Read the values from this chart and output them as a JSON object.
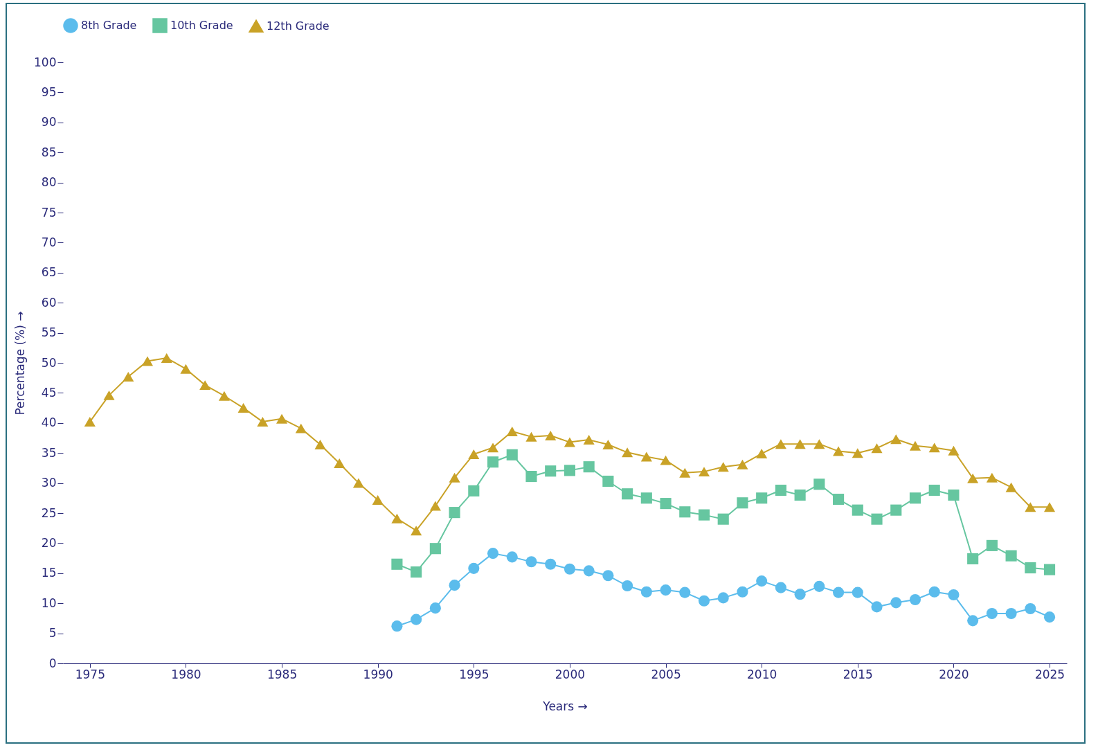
{
  "chart_data": {
    "type": "line",
    "xlabel": "Years →",
    "ylabel": "Percentage (%) →",
    "x": [
      1975,
      1976,
      1977,
      1978,
      1979,
      1980,
      1981,
      1982,
      1983,
      1984,
      1985,
      1986,
      1987,
      1988,
      1989,
      1990,
      1991,
      1992,
      1993,
      1994,
      1995,
      1996,
      1997,
      1998,
      1999,
      2000,
      2001,
      2002,
      2003,
      2004,
      2005,
      2006,
      2007,
      2008,
      2009,
      2010,
      2011,
      2012,
      2013,
      2014,
      2015,
      2016,
      2017,
      2018,
      2019,
      2020,
      2021,
      2022,
      2023,
      2024,
      2025
    ],
    "series": [
      {
        "name": "8th Grade",
        "color": "#5bbcec",
        "marker": "circle",
        "x": [
          1991,
          1992,
          1993,
          1994,
          1995,
          1996,
          1997,
          1998,
          1999,
          2000,
          2001,
          2002,
          2003,
          2004,
          2005,
          2006,
          2007,
          2008,
          2009,
          2010,
          2011,
          2012,
          2013,
          2014,
          2015,
          2016,
          2017,
          2018,
          2019,
          2020,
          2021,
          2022,
          2023,
          2024,
          2025
        ],
        "values": [
          6.2,
          7.3,
          9.2,
          13.0,
          15.8,
          18.3,
          17.7,
          16.9,
          16.5,
          15.7,
          15.4,
          14.6,
          12.9,
          11.9,
          12.2,
          11.8,
          10.4,
          10.9,
          11.9,
          13.7,
          12.6,
          11.5,
          12.8,
          11.8,
          11.8,
          9.4,
          10.1,
          10.6,
          11.9,
          11.4,
          7.1,
          8.3,
          8.3,
          9.1,
          7.7
        ]
      },
      {
        "name": "10th Grade",
        "color": "#66c6a0",
        "marker": "square",
        "x": [
          1991,
          1992,
          1993,
          1994,
          1995,
          1996,
          1997,
          1998,
          1999,
          2000,
          2001,
          2002,
          2003,
          2004,
          2005,
          2006,
          2007,
          2008,
          2009,
          2010,
          2011,
          2012,
          2013,
          2014,
          2015,
          2016,
          2017,
          2018,
          2019,
          2020,
          2021,
          2022,
          2023,
          2024,
          2025
        ],
        "values": [
          16.5,
          15.2,
          19.1,
          25.1,
          28.7,
          33.5,
          34.7,
          31.1,
          32.0,
          32.1,
          32.7,
          30.3,
          28.2,
          27.5,
          26.6,
          25.2,
          24.7,
          24.0,
          26.7,
          27.5,
          28.8,
          28.0,
          29.8,
          27.3,
          25.5,
          24.0,
          25.5,
          27.5,
          28.8,
          28.0,
          17.4,
          19.6,
          17.9,
          15.9,
          15.6
        ]
      },
      {
        "name": "12th Grade",
        "color": "#c9a227",
        "marker": "triangle",
        "values": [
          40.2,
          44.6,
          47.7,
          50.3,
          50.8,
          49.0,
          46.3,
          44.5,
          42.5,
          40.2,
          40.7,
          39.1,
          36.4,
          33.3,
          30.0,
          27.2,
          24.1,
          22.1,
          26.2,
          30.9,
          34.8,
          35.9,
          38.6,
          37.7,
          37.9,
          36.8,
          37.2,
          36.4,
          35.1,
          34.4,
          33.8,
          31.7,
          31.9,
          32.7,
          33.1,
          34.9,
          36.5,
          36.5,
          36.5,
          35.3,
          35.0,
          35.8,
          37.3,
          36.2,
          35.9,
          35.4,
          30.8,
          30.9,
          29.3,
          26.0,
          26.0
        ]
      }
    ],
    "xlim": [
      1973.6,
      2025.9
    ],
    "xticks": [
      1975,
      1980,
      1985,
      1990,
      1995,
      2000,
      2005,
      2010,
      2015,
      2020,
      2025
    ],
    "ylim": [
      0,
      100
    ],
    "yticks": [
      0,
      5,
      10,
      15,
      20,
      25,
      30,
      35,
      40,
      45,
      50,
      55,
      60,
      65,
      70,
      75,
      80,
      85,
      90,
      95,
      100
    ],
    "legend": "top left",
    "grid": false
  }
}
